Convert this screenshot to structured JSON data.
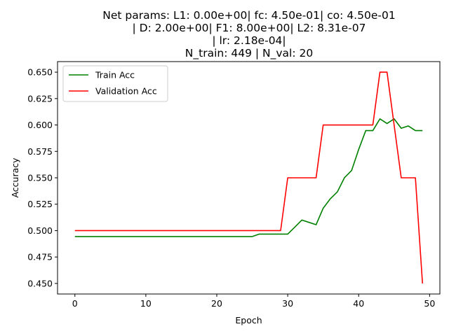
{
  "chart_data": {
    "type": "line",
    "title_lines": [
      "Net params: L1: 0.00e+00| fc: 4.50e-01| co: 4.50e-01",
      "| D: 2.00e+00| F1: 8.00e+00| L2: 8.31e-07",
      "| lr: 2.18e-04|",
      "N_train: 449 | N_val: 20"
    ],
    "xlabel": "Epoch",
    "ylabel": "Accuracy",
    "xlim": [
      -2.45,
      51.45
    ],
    "ylim": [
      0.44,
      0.66
    ],
    "x_ticks": [
      0,
      10,
      20,
      30,
      40,
      50
    ],
    "y_ticks": [
      0.45,
      0.475,
      0.5,
      0.525,
      0.55,
      0.575,
      0.6,
      0.625,
      0.65
    ],
    "y_tick_labels": [
      "0.450",
      "0.475",
      "0.500",
      "0.525",
      "0.550",
      "0.575",
      "0.600",
      "0.625",
      "0.650"
    ],
    "grid": false,
    "legend_position": "top-left",
    "x": [
      0,
      1,
      2,
      3,
      4,
      5,
      6,
      7,
      8,
      9,
      10,
      11,
      12,
      13,
      14,
      15,
      16,
      17,
      18,
      19,
      20,
      21,
      22,
      23,
      24,
      25,
      26,
      27,
      28,
      29,
      30,
      31,
      32,
      33,
      34,
      35,
      36,
      37,
      38,
      39,
      40,
      41,
      42,
      43,
      44,
      45,
      46,
      47,
      48,
      49
    ],
    "series": [
      {
        "name": "Train Acc",
        "color": "#008000",
        "values": [
          0.4944,
          0.4944,
          0.4944,
          0.4944,
          0.4944,
          0.4944,
          0.4944,
          0.4944,
          0.4944,
          0.4944,
          0.4944,
          0.4944,
          0.4944,
          0.4944,
          0.4944,
          0.4944,
          0.4944,
          0.4944,
          0.4944,
          0.4944,
          0.4944,
          0.4944,
          0.4944,
          0.4944,
          0.4944,
          0.4944,
          0.4967,
          0.4967,
          0.4967,
          0.4967,
          0.4967,
          0.5033,
          0.51,
          0.5078,
          0.5056,
          0.5212,
          0.5301,
          0.5367,
          0.5501,
          0.5568,
          0.5768,
          0.5947,
          0.5947,
          0.6058,
          0.6014,
          0.6058,
          0.5969,
          0.5991,
          0.5947,
          0.5947
        ]
      },
      {
        "name": "Validation Acc",
        "color": "#ff0000",
        "values": [
          0.5,
          0.5,
          0.5,
          0.5,
          0.5,
          0.5,
          0.5,
          0.5,
          0.5,
          0.5,
          0.5,
          0.5,
          0.5,
          0.5,
          0.5,
          0.5,
          0.5,
          0.5,
          0.5,
          0.5,
          0.5,
          0.5,
          0.5,
          0.5,
          0.5,
          0.5,
          0.5,
          0.5,
          0.5,
          0.5,
          0.55,
          0.55,
          0.55,
          0.55,
          0.55,
          0.6,
          0.6,
          0.6,
          0.6,
          0.6,
          0.6,
          0.6,
          0.6,
          0.65,
          0.65,
          0.6,
          0.55,
          0.55,
          0.55,
          0.45
        ]
      }
    ]
  }
}
